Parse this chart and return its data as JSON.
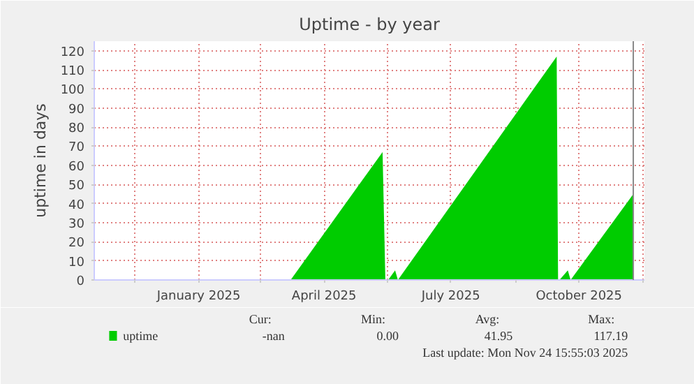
{
  "chart_data": {
    "type": "area",
    "title": "Uptime - by year",
    "ylabel": "uptime in days",
    "x": [
      "2025-03-23",
      "2025-05-28",
      "2025-05-30",
      "2025-06-01",
      "2025-06-06",
      "2025-06-08",
      "2025-09-30",
      "2025-10-01",
      "2025-10-02",
      "2025-10-08",
      "2025-10-10",
      "2025-11-24"
    ],
    "series": [
      {
        "name": "uptime",
        "color": "#00cc00",
        "values": [
          0,
          67,
          0,
          0,
          5,
          0,
          117,
          0,
          0,
          5,
          0,
          45
        ]
      }
    ],
    "xlim": [
      "2024-11-02",
      "2025-12-02"
    ],
    "xticks": [
      {
        "value": "2024-12-01",
        "label": null
      },
      {
        "value": "2025-01-16",
        "label": "January 2025"
      },
      {
        "value": "2025-03-01",
        "label": null
      },
      {
        "value": "2025-04-16",
        "label": "April 2025"
      },
      {
        "value": "2025-06-01",
        "label": null
      },
      {
        "value": "2025-07-16",
        "label": "July 2025"
      },
      {
        "value": "2025-09-01",
        "label": null
      },
      {
        "value": "2025-10-16",
        "label": "October 2025"
      },
      {
        "value": "2025-12-01",
        "label": null
      }
    ],
    "ylim": [
      0,
      125
    ],
    "yticks": [
      0,
      10,
      20,
      30,
      40,
      50,
      60,
      70,
      80,
      90,
      100,
      110,
      120
    ],
    "grid": true,
    "legend": "bottom",
    "ref_lines": [
      {
        "axis": "x",
        "value": "2025-11-24",
        "label": null,
        "color": "#888888"
      }
    ],
    "annotations": [
      "Cur:",
      "Min:",
      "Avg:",
      "Max:",
      "-nan",
      "0.00",
      "41.95",
      "117.19",
      "Last update: Mon Nov 24 15:55:03 2025"
    ]
  }
}
